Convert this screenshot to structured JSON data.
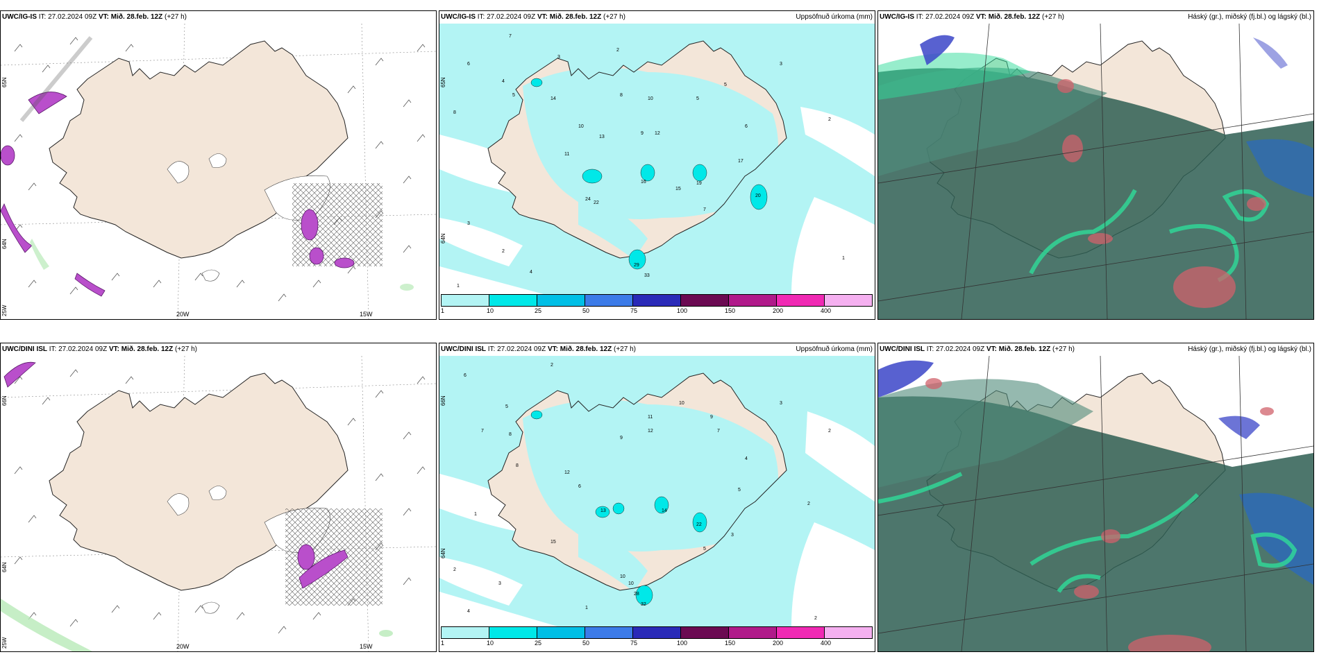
{
  "panels": {
    "top_left": {
      "model": "UWC/IG-IS",
      "it_label": "IT:",
      "it": "27.02.2024 09Z",
      "vt_label": "VT:",
      "vt": "Mið. 28.feb. 12Z",
      "lead": "(+27 h)",
      "right_title": ""
    },
    "top_mid": {
      "model": "UWC/IG-IS",
      "it_label": "IT:",
      "it": "27.02.2024 09Z",
      "vt_label": "VT:",
      "vt": "Mið. 28.feb. 12Z",
      "lead": "(+27 h)",
      "right_title": "Uppsöfnuð úrkoma (mm)"
    },
    "top_right": {
      "model": "UWC/IG-IS",
      "it_label": "IT:",
      "it": "27.02.2024 09Z",
      "vt_label": "VT:",
      "vt": "Mið. 28.feb. 12Z",
      "lead": "(+27 h)",
      "right_title": "Háský (gr.), miðský (fj.bl.) og lágský (bl.)"
    },
    "bottom_left": {
      "model": "UWC/DINI ISL",
      "it_label": "IT:",
      "it": "27.02.2024 09Z",
      "vt_label": "VT:",
      "vt": "Mið. 28.feb. 12Z",
      "lead": "(+27 h)",
      "right_title": ""
    },
    "bottom_mid": {
      "model": "UWC/DINI ISL",
      "it_label": "IT:",
      "it": "27.02.2024 09Z",
      "vt_label": "VT:",
      "vt": "Mið. 28.feb. 12Z",
      "lead": "(+27 h)",
      "right_title": "Uppsöfnuð úrkoma (mm)"
    },
    "bottom_right": {
      "model": "UWC/DINI ISL",
      "it_label": "IT:",
      "it": "27.02.2024 09Z",
      "vt_label": "VT:",
      "vt": "Mið. 28.feb. 12Z",
      "lead": "(+27 h)",
      "right_title": "Háský (gr.), miðský (fj.bl.) og lágský (bl.)"
    }
  },
  "axis_labels": {
    "lon_20w": "20W",
    "lon_15w": "15W",
    "lat_65n": "65N",
    "lat_64n": "64N",
    "lat_25w": "25W",
    "lat_66n": "66N"
  },
  "colorbar": {
    "ticks": [
      "1",
      "10",
      "25",
      "50",
      "75",
      "100",
      "150",
      "200",
      "400"
    ],
    "colors": [
      "#b3f4f4",
      "#00e8e8",
      "#00bfe6",
      "#3c7be8",
      "#2a2ab8",
      "#6b0a52",
      "#b01a8a",
      "#f02ab4",
      "#f5b0f0"
    ]
  },
  "colors": {
    "land": "#f3e6d9",
    "ocean": "#ffffff",
    "precip_light": "#b3f4f4",
    "snow_mark": "#9b2a9b",
    "cloud_low": "#2e5e52",
    "cloud_mid": "#2fdc9a",
    "cloud_high": "#3b45c8"
  },
  "precip_values_top": [
    "7",
    "2",
    "3",
    "4",
    "6",
    "5",
    "8",
    "10",
    "14",
    "11",
    "9",
    "12",
    "13",
    "15",
    "17",
    "24",
    "22",
    "20",
    "19",
    "16",
    "29",
    "33",
    "10",
    "8",
    "5",
    "3",
    "2",
    "1",
    "1",
    "3",
    "2",
    "4",
    "6",
    "7",
    "5"
  ],
  "precip_values_bottom": [
    "2",
    "6",
    "5",
    "7",
    "8",
    "11",
    "10",
    "12",
    "14",
    "13",
    "15",
    "10",
    "28",
    "32",
    "22",
    "4",
    "3",
    "2",
    "5",
    "6",
    "9",
    "1",
    "2",
    "3",
    "4",
    "8",
    "12",
    "10",
    "9",
    "7",
    "5",
    "3",
    "2",
    "2",
    "1"
  ]
}
